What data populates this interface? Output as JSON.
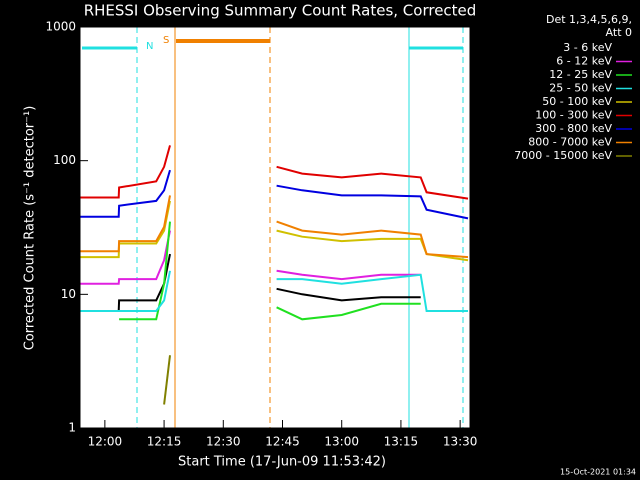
{
  "chart_data": {
    "type": "line",
    "title": "RHESSI Observing Summary Count Rates, Corrected",
    "x_label": "Start Time (17-Jun-09 11:53:42)",
    "y_label": "Corrected Count Rate (s⁻¹ detector⁻¹)",
    "legend_title": [
      "Det 1,3,4,5,6,9,",
      "Att 0"
    ],
    "annotations": [
      "N",
      "S"
    ],
    "footer": "15-Oct-2021 01:34",
    "log_y": true,
    "legend": "right",
    "x": [
      713.7,
      723.5,
      723.6,
      733,
      735,
      736.5,
      740,
      763.5,
      770,
      780,
      790,
      800,
      801.5,
      812
    ],
    "xlim": [
      713.7,
      812.5
    ],
    "xticks": [
      {
        "value": 720,
        "label": "12:00"
      },
      {
        "value": 735,
        "label": "12:15"
      },
      {
        "value": 750,
        "label": "12:30"
      },
      {
        "value": 765,
        "label": "12:45"
      },
      {
        "value": 780,
        "label": "13:00"
      },
      {
        "value": 795,
        "label": "13:15"
      },
      {
        "value": 810,
        "label": "13:30"
      }
    ],
    "ylim": [
      1,
      1000
    ],
    "yticks": [
      1,
      10,
      100,
      1000
    ],
    "series": [
      {
        "name": "3 - 6 keV",
        "color": "#000000",
        "values": [
          7.5,
          7.5,
          9,
          9,
          12,
          20,
          null,
          11,
          10,
          9,
          9.5,
          9.5,
          null,
          null
        ]
      },
      {
        "name": "6 - 12 keV",
        "color": "#e020e0",
        "values": [
          12,
          12,
          13,
          13,
          18,
          30,
          null,
          15,
          14,
          13,
          14,
          14,
          null,
          null
        ]
      },
      {
        "name": "12 - 25 keV",
        "color": "#20e020",
        "values": [
          null,
          null,
          6.5,
          6.5,
          12,
          35,
          null,
          8,
          6.5,
          7,
          8.5,
          8.5,
          null,
          null
        ]
      },
      {
        "name": "25 - 50 keV",
        "color": "#20e0e0",
        "values": [
          7.5,
          7.5,
          7.5,
          7.5,
          9,
          15,
          null,
          13,
          13,
          12,
          13,
          14,
          7.5,
          7.5
        ]
      },
      {
        "name": "50 - 100 keV",
        "color": "#d0c000",
        "values": [
          19,
          19,
          24,
          24,
          30,
          50,
          null,
          30,
          27,
          25,
          26,
          26,
          20,
          18
        ]
      },
      {
        "name": "100 - 300 keV",
        "color": "#e00000",
        "values": [
          53,
          53,
          63,
          70,
          90,
          130,
          null,
          90,
          80,
          75,
          80,
          75,
          58,
          52
        ]
      },
      {
        "name": "300 - 800 keV",
        "color": "#0000e0",
        "values": [
          38,
          38,
          46,
          50,
          60,
          85,
          null,
          65,
          60,
          55,
          55,
          54,
          43,
          37
        ]
      },
      {
        "name": "800 - 7000 keV",
        "color": "#f08000",
        "values": [
          21,
          21,
          25,
          25,
          32,
          55,
          null,
          35,
          30,
          28,
          30,
          28,
          20,
          19
        ]
      },
      {
        "name": "7000 - 15000 keV",
        "color": "#808000",
        "values": [
          null,
          null,
          null,
          null,
          1.5,
          3.5,
          null,
          null,
          null,
          null,
          null,
          null,
          null,
          null
        ]
      }
    ]
  }
}
